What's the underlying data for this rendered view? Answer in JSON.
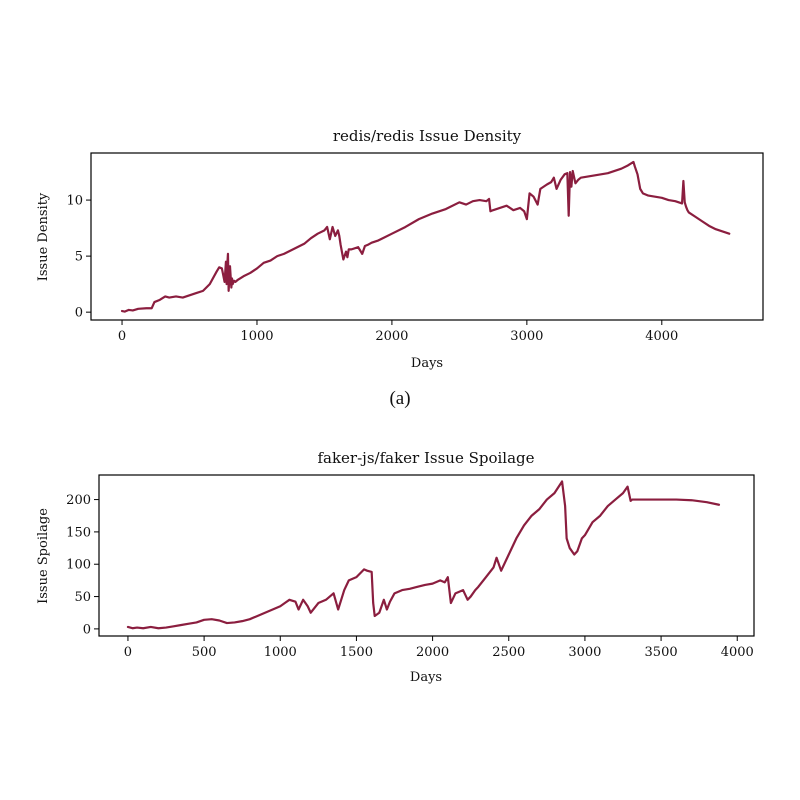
{
  "colors": {
    "line": "#8b1e3f"
  },
  "caption_a": "(a)",
  "chart_data": [
    {
      "type": "line",
      "title": "redis/redis Issue Density",
      "xlabel": "Days",
      "ylabel": "Issue Density",
      "xlim": [
        -230,
        4750
      ],
      "ylim": [
        -0.7,
        14.2
      ],
      "xticks": [
        0,
        1000,
        2000,
        3000,
        4000
      ],
      "xtick_labels": [
        "0",
        "1000",
        "2000",
        "3000",
        "4000"
      ],
      "yticks": [
        0,
        5,
        10
      ],
      "ytick_labels": [
        "0",
        "5",
        "10"
      ],
      "series": [
        {
          "name": "Issue Density",
          "x": [
            0,
            20,
            50,
            80,
            120,
            180,
            220,
            240,
            280,
            320,
            350,
            400,
            450,
            500,
            550,
            600,
            650,
            700,
            720,
            740,
            760,
            770,
            775,
            780,
            785,
            790,
            800,
            810,
            815,
            820,
            830,
            840,
            860,
            900,
            950,
            1000,
            1050,
            1100,
            1150,
            1200,
            1250,
            1300,
            1350,
            1400,
            1450,
            1500,
            1520,
            1540,
            1560,
            1580,
            1600,
            1610,
            1620,
            1640,
            1660,
            1670,
            1680,
            1700,
            1750,
            1780,
            1800,
            1820,
            1850,
            1900,
            2000,
            2100,
            2200,
            2300,
            2400,
            2500,
            2550,
            2600,
            2650,
            2700,
            2720,
            2730,
            2750,
            2800,
            2850,
            2900,
            2950,
            2980,
            3000,
            3020,
            3050,
            3080,
            3100,
            3150,
            3180,
            3200,
            3220,
            3250,
            3280,
            3300,
            3310,
            3320,
            3330,
            3340,
            3360,
            3380,
            3400,
            3450,
            3500,
            3550,
            3600,
            3650,
            3700,
            3750,
            3790,
            3800,
            3820,
            3840,
            3860,
            3880,
            3900,
            3950,
            4000,
            4050,
            4100,
            4150,
            4160,
            4170,
            4180,
            4190,
            4200,
            4250,
            4300,
            4350,
            4400,
            4450,
            4500
          ],
          "y": [
            0.1,
            0.05,
            0.2,
            0.15,
            0.3,
            0.35,
            0.35,
            0.9,
            1.1,
            1.4,
            1.3,
            1.4,
            1.3,
            1.5,
            1.7,
            1.9,
            2.5,
            3.6,
            4.0,
            3.9,
            2.7,
            4.5,
            2.5,
            4.2,
            5.2,
            1.9,
            4.1,
            2.2,
            3.0,
            2.5,
            2.8,
            2.7,
            2.9,
            3.2,
            3.5,
            3.9,
            4.4,
            4.6,
            5.0,
            5.2,
            5.5,
            5.8,
            6.1,
            6.6,
            7.0,
            7.3,
            7.6,
            6.5,
            7.6,
            6.8,
            7.3,
            6.8,
            6.0,
            4.7,
            5.4,
            4.9,
            5.6,
            5.6,
            5.8,
            5.2,
            5.9,
            6.0,
            6.2,
            6.4,
            7.0,
            7.6,
            8.3,
            8.8,
            9.2,
            9.8,
            9.6,
            9.9,
            10.0,
            9.9,
            10.1,
            9.0,
            9.1,
            9.3,
            9.5,
            9.1,
            9.3,
            9.0,
            8.3,
            10.6,
            10.3,
            9.6,
            11.0,
            11.4,
            11.6,
            12.0,
            11.0,
            11.8,
            12.3,
            12.4,
            8.6,
            12.5,
            11.2,
            12.6,
            11.5,
            11.8,
            12.0,
            12.1,
            12.2,
            12.3,
            12.4,
            12.6,
            12.8,
            13.1,
            13.4,
            13.0,
            12.3,
            11.0,
            10.6,
            10.5,
            10.4,
            10.3,
            10.2,
            10.0,
            9.9,
            9.7,
            11.7,
            9.8,
            9.4,
            9.1,
            8.9,
            8.5,
            8.1,
            7.7,
            7.4,
            7.2,
            7.0
          ]
        }
      ]
    },
    {
      "type": "line",
      "title": "faker-js/faker Issue Spoilage",
      "xlabel": "Days",
      "ylabel": "Issue Spoilage",
      "xlim": [
        -190,
        4110
      ],
      "ylim": [
        -11,
        238
      ],
      "xticks": [
        0,
        500,
        1000,
        1500,
        2000,
        2500,
        3000,
        3500,
        4000
      ],
      "xtick_labels": [
        "0",
        "500",
        "1000",
        "1500",
        "2000",
        "2500",
        "3000",
        "3500",
        "4000"
      ],
      "yticks": [
        0,
        50,
        100,
        150,
        200
      ],
      "ytick_labels": [
        "0",
        "50",
        "100",
        "150",
        "200"
      ],
      "series": [
        {
          "name": "Issue Spoilage",
          "x": [
            0,
            30,
            60,
            100,
            150,
            200,
            250,
            300,
            350,
            400,
            450,
            500,
            550,
            600,
            650,
            700,
            750,
            800,
            850,
            900,
            950,
            1000,
            1030,
            1060,
            1100,
            1120,
            1150,
            1180,
            1200,
            1250,
            1300,
            1350,
            1380,
            1400,
            1420,
            1450,
            1500,
            1550,
            1570,
            1600,
            1610,
            1620,
            1650,
            1680,
            1700,
            1720,
            1750,
            1800,
            1850,
            1900,
            1950,
            2000,
            2050,
            2080,
            2100,
            2120,
            2130,
            2150,
            2200,
            2230,
            2250,
            2280,
            2300,
            2350,
            2400,
            2420,
            2450,
            2500,
            2550,
            2600,
            2650,
            2700,
            2750,
            2800,
            2850,
            2870,
            2880,
            2900,
            2930,
            2950,
            2980,
            3000,
            3050,
            3100,
            3150,
            3200,
            3250,
            3280,
            3300,
            3310,
            3400,
            3500,
            3600,
            3700,
            3800,
            3880
          ],
          "y": [
            3,
            1,
            2,
            1,
            3,
            1,
            2,
            4,
            6,
            8,
            10,
            14,
            15,
            13,
            9,
            10,
            12,
            15,
            20,
            25,
            30,
            35,
            40,
            45,
            42,
            30,
            45,
            35,
            25,
            40,
            45,
            55,
            30,
            45,
            60,
            75,
            80,
            92,
            90,
            88,
            40,
            20,
            25,
            45,
            30,
            42,
            55,
            60,
            62,
            65,
            68,
            70,
            75,
            72,
            80,
            40,
            45,
            55,
            60,
            45,
            50,
            60,
            65,
            80,
            95,
            110,
            90,
            115,
            140,
            160,
            175,
            185,
            200,
            210,
            228,
            190,
            140,
            125,
            115,
            120,
            140,
            145,
            165,
            175,
            190,
            200,
            210,
            220,
            198,
            200,
            200,
            200,
            200,
            199,
            196,
            192
          ]
        }
      ]
    }
  ]
}
